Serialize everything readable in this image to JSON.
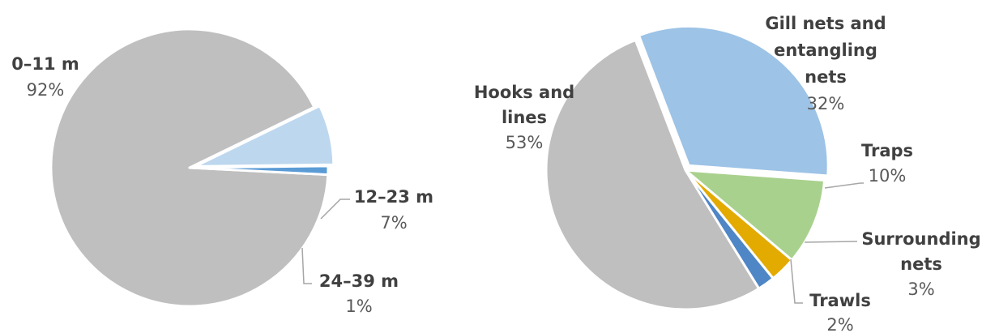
{
  "chart_data": [
    {
      "type": "pie",
      "slices": [
        {
          "label": "0–11 m",
          "value": 92,
          "value_label": "92%",
          "color": "#BFBFBF"
        },
        {
          "label": "12–23 m",
          "value": 7,
          "value_label": "7%",
          "color": "#BDD7EE"
        },
        {
          "label": "24–39 m",
          "value": 1,
          "value_label": "1%",
          "color": "#5B9BD5"
        }
      ]
    },
    {
      "type": "pie",
      "slices": [
        {
          "label": "Gill nets and entangling nets",
          "label_lines": [
            "Gill nets and",
            "entangling",
            "nets"
          ],
          "value": 32,
          "value_label": "32%",
          "color": "#9DC3E6"
        },
        {
          "label": "Traps",
          "label_lines": [
            "Traps"
          ],
          "value": 10,
          "value_label": "10%",
          "color": "#A9D18E"
        },
        {
          "label": "Surrounding nets",
          "label_lines": [
            "Surrounding",
            "nets"
          ],
          "value": 3,
          "value_label": "3%",
          "color": "#E3AA00"
        },
        {
          "label": "Trawls",
          "label_lines": [
            "Trawls"
          ],
          "value": 2,
          "value_label": "2%",
          "color": "#4F86C6"
        },
        {
          "label": "Hooks and lines",
          "label_lines": [
            "Hooks and",
            "lines"
          ],
          "value": 53,
          "value_label": "53%",
          "color": "#BFBFBF"
        }
      ]
    }
  ]
}
